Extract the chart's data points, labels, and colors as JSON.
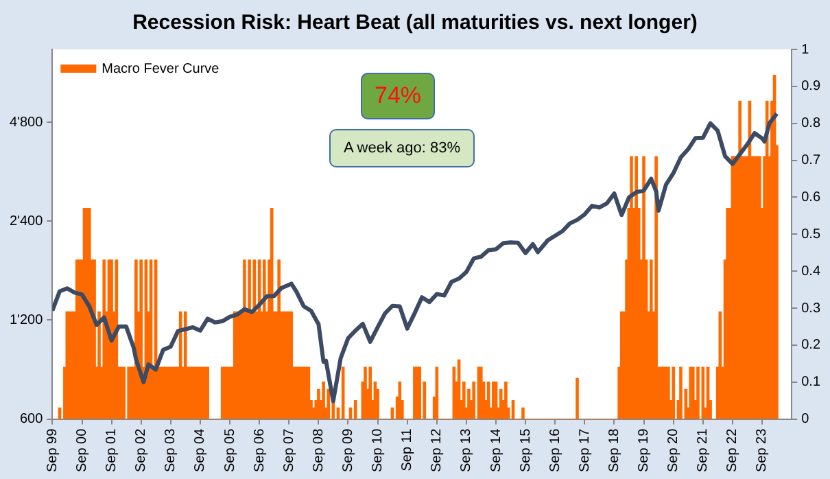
{
  "chart_data": {
    "type": "bar",
    "title": "Recession Risk: Heart Beat (all maturities vs. next longer)",
    "annotations": [
      "74%",
      "A week ago: 83%"
    ],
    "x": [
      "1999-09",
      "1999-10",
      "1999-11",
      "1999-12",
      "2000-01",
      "2000-02",
      "2000-03",
      "2000-04",
      "2000-05",
      "2000-06",
      "2000-07",
      "2000-08",
      "2000-09",
      "2000-10",
      "2000-11",
      "2000-12",
      "2001-01",
      "2001-02",
      "2001-03",
      "2001-04",
      "2001-05",
      "2001-06",
      "2001-07",
      "2001-08",
      "2001-09",
      "2001-10",
      "2001-11",
      "2001-12",
      "2002-01",
      "2002-02",
      "2002-03",
      "2002-04",
      "2002-05",
      "2002-06",
      "2002-07",
      "2002-08",
      "2002-09",
      "2002-10",
      "2002-11",
      "2002-12",
      "2003-01",
      "2003-02",
      "2003-03",
      "2003-04",
      "2003-05",
      "2003-06",
      "2003-07",
      "2003-08",
      "2003-09",
      "2003-10",
      "2003-11",
      "2003-12",
      "2004-01",
      "2004-02",
      "2004-03",
      "2004-04",
      "2004-05",
      "2004-06",
      "2004-07",
      "2004-08",
      "2004-09",
      "2004-10",
      "2004-11",
      "2004-12",
      "2005-01",
      "2005-02",
      "2005-03",
      "2005-04",
      "2005-05",
      "2005-06",
      "2005-07",
      "2005-08",
      "2005-09",
      "2005-10",
      "2005-11",
      "2005-12",
      "2006-01",
      "2006-02",
      "2006-03",
      "2006-04",
      "2006-05",
      "2006-06",
      "2006-07",
      "2006-08",
      "2006-09",
      "2006-10",
      "2006-11",
      "2006-12",
      "2007-01",
      "2007-02",
      "2007-03",
      "2007-04",
      "2007-05",
      "2007-06",
      "2007-07",
      "2007-08",
      "2007-09",
      "2007-10",
      "2007-11",
      "2007-12",
      "2008-01",
      "2008-02",
      "2008-03",
      "2008-04",
      "2008-05",
      "2008-06",
      "2008-07",
      "2008-08",
      "2008-09",
      "2008-10",
      "2008-11",
      "2008-12",
      "2009-01",
      "2009-02",
      "2009-03",
      "2009-04",
      "2009-05",
      "2009-06",
      "2009-07",
      "2009-08",
      "2009-09",
      "2009-10",
      "2009-11",
      "2009-12",
      "2010-01",
      "2010-02",
      "2010-03",
      "2010-04",
      "2010-05",
      "2010-06",
      "2010-07",
      "2010-08",
      "2010-09",
      "2010-10",
      "2010-11",
      "2010-12",
      "2011-01",
      "2011-02",
      "2011-03",
      "2011-04",
      "2011-05",
      "2011-06",
      "2011-07",
      "2011-08",
      "2011-09",
      "2011-10",
      "2011-11",
      "2011-12",
      "2012-01",
      "2012-02",
      "2012-03",
      "2012-04",
      "2012-05",
      "2012-06",
      "2012-07",
      "2012-08",
      "2012-09",
      "2012-10",
      "2012-11",
      "2012-12",
      "2013-01",
      "2013-02",
      "2013-03",
      "2013-04",
      "2013-05",
      "2013-06",
      "2013-07",
      "2013-08",
      "2013-09",
      "2013-10",
      "2013-11",
      "2013-12",
      "2014-01",
      "2014-02",
      "2014-03",
      "2014-04",
      "2014-05",
      "2014-06",
      "2014-07",
      "2014-08",
      "2014-09",
      "2014-10",
      "2014-11",
      "2014-12",
      "2015-01",
      "2015-02",
      "2015-03",
      "2015-04",
      "2015-05",
      "2015-06",
      "2015-07",
      "2015-08",
      "2015-09",
      "2015-10",
      "2015-11",
      "2015-12",
      "2016-01",
      "2016-02",
      "2016-03",
      "2016-04",
      "2016-05",
      "2016-06",
      "2016-07",
      "2016-08",
      "2016-09",
      "2016-10",
      "2016-11",
      "2016-12",
      "2017-01",
      "2017-02",
      "2017-03",
      "2017-04",
      "2017-05",
      "2017-06",
      "2017-07",
      "2017-08",
      "2017-09",
      "2017-10",
      "2017-11",
      "2017-12",
      "2018-01",
      "2018-02",
      "2018-03",
      "2018-04",
      "2018-05",
      "2018-06",
      "2018-07",
      "2018-08",
      "2018-09",
      "2018-10",
      "2018-11",
      "2018-12",
      "2019-01",
      "2019-02",
      "2019-03",
      "2019-04",
      "2019-05",
      "2019-06",
      "2019-07",
      "2019-08",
      "2019-09",
      "2019-10",
      "2019-11",
      "2019-12",
      "2020-01",
      "2020-02",
      "2020-03",
      "2020-04",
      "2020-05",
      "2020-06",
      "2020-07",
      "2020-08",
      "2020-09",
      "2020-10",
      "2020-11",
      "2020-12",
      "2021-01",
      "2021-02",
      "2021-03",
      "2021-04",
      "2021-05",
      "2021-06",
      "2021-07",
      "2021-08",
      "2021-09",
      "2021-10",
      "2021-11",
      "2021-12",
      "2022-01",
      "2022-02",
      "2022-03",
      "2022-04",
      "2022-05",
      "2022-06",
      "2022-07",
      "2022-08",
      "2022-09",
      "2022-10",
      "2022-11",
      "2022-12",
      "2023-01",
      "2023-02",
      "2023-03",
      "2023-04",
      "2023-05",
      "2023-06",
      "2023-07",
      "2023-08",
      "2023-09",
      "2023-10",
      "2023-11",
      "2023-12",
      "2024-01",
      "2024-02",
      "2024-03"
    ],
    "series": [
      {
        "name": "Macro Fever Curve",
        "axis": "y2",
        "color": "#ff6a00",
        "values": [
          0,
          0,
          0,
          0.03,
          0,
          0.14,
          0.29,
          0.29,
          0.29,
          0.29,
          0.43,
          0.43,
          0.43,
          0.57,
          0.57,
          0.57,
          0.43,
          0.43,
          0.14,
          0.29,
          0.14,
          0.43,
          0.29,
          0.43,
          0.43,
          0.29,
          0.43,
          0.14,
          0.14,
          0.14,
          0,
          0.14,
          0.14,
          0.14,
          0.43,
          0.29,
          0.43,
          0.14,
          0.43,
          0.29,
          0.43,
          0.14,
          0.43,
          0.14,
          0.14,
          0.14,
          0.14,
          0.14,
          0.14,
          0.14,
          0.14,
          0.14,
          0.29,
          0.14,
          0.29,
          0.14,
          0.14,
          0.14,
          0.14,
          0.14,
          0.14,
          0.14,
          0.14,
          0.14,
          0,
          0,
          0,
          0,
          0,
          0.14,
          0.14,
          0.14,
          0.14,
          0.14,
          0.29,
          0.29,
          0.29,
          0.29,
          0.43,
          0.29,
          0.43,
          0.29,
          0.43,
          0.29,
          0.43,
          0.29,
          0.43,
          0.29,
          0.43,
          0.57,
          0.29,
          0.29,
          0.43,
          0.29,
          0.29,
          0.29,
          0.29,
          0.29,
          0.14,
          0.14,
          0.14,
          0.14,
          0.14,
          0.14,
          0.14,
          0.05,
          0.03,
          0.05,
          0.08,
          0.05,
          0.1,
          0.03,
          0.08,
          0,
          0.05,
          0,
          0.03,
          0,
          0.14,
          0,
          0,
          0.03,
          0,
          0.05,
          0,
          0,
          0.1,
          0.14,
          0.08,
          0.14,
          0.05,
          0.1,
          0.08,
          0,
          0,
          0,
          0,
          0,
          0.03,
          0,
          0.06,
          0.1,
          0.05,
          0,
          0,
          0,
          0,
          0.14,
          0.14,
          0.14,
          0,
          0.1,
          0,
          0,
          0,
          0.06,
          0.14,
          0,
          0,
          0,
          0,
          0,
          0,
          0.14,
          0.1,
          0.16,
          0.05,
          0.1,
          0.03,
          0.08,
          0.05,
          0.1,
          0,
          0.14,
          0.14,
          0.1,
          0.05,
          0.1,
          0.03,
          0.1,
          0.1,
          0.03,
          0.08,
          0.05,
          0.1,
          0.03,
          0,
          0.05,
          0,
          0,
          0,
          0.03,
          0,
          0,
          0,
          0,
          0,
          0,
          0,
          0,
          0,
          0,
          0,
          0,
          0,
          0,
          0,
          0,
          0,
          0,
          0,
          0,
          0,
          0.11,
          0,
          0,
          0,
          0,
          0,
          0,
          0,
          0,
          0,
          0,
          0,
          0,
          0,
          0,
          0,
          0,
          0.14,
          0.29,
          0.29,
          0.43,
          0.57,
          0.71,
          0.57,
          0.71,
          0.57,
          0.43,
          0.71,
          0.43,
          0.29,
          0.43,
          0.29,
          0.71,
          0.14,
          0.14,
          0.14,
          0.14,
          0.14,
          0.05,
          0.14,
          0,
          0.05,
          0.14,
          0,
          0.08,
          0.03,
          0.14,
          0.14,
          0.05,
          0.14,
          0,
          0.14,
          0.03,
          0.14,
          0.05,
          0,
          0,
          0.14,
          0.29,
          0.14,
          0.43,
          0.57,
          0.57,
          0.71,
          0.71,
          0.71,
          0.86,
          0.71,
          0.71,
          0.71,
          0.86,
          0.71,
          0.71,
          0.71,
          0.71,
          0.57,
          0.71,
          0.86,
          0.71,
          0.86,
          0.93,
          0.74
        ]
      },
      {
        "type": "line",
        "axis": "y",
        "color": "#3c4b63",
        "x": [
          "1999-09",
          "1999-12",
          "2000-03",
          "2000-06",
          "2000-09",
          "2000-12",
          "2001-03",
          "2001-06",
          "2001-09",
          "2001-12",
          "2002-03",
          "2002-06",
          "2002-07",
          "2002-10",
          "2002-12",
          "2003-03",
          "2003-06",
          "2003-09",
          "2003-12",
          "2004-03",
          "2004-06",
          "2004-09",
          "2004-12",
          "2005-03",
          "2005-06",
          "2005-09",
          "2005-12",
          "2006-03",
          "2006-06",
          "2006-09",
          "2006-12",
          "2007-03",
          "2007-06",
          "2007-10",
          "2007-12",
          "2008-03",
          "2008-06",
          "2008-09",
          "2008-11",
          "2008-12",
          "2009-03",
          "2009-06",
          "2009-09",
          "2009-12",
          "2010-03",
          "2010-06",
          "2010-09",
          "2010-12",
          "2011-03",
          "2011-06",
          "2011-09",
          "2011-12",
          "2012-03",
          "2012-06",
          "2012-09",
          "2012-12",
          "2013-03",
          "2013-06",
          "2013-09",
          "2013-12",
          "2014-03",
          "2014-06",
          "2014-09",
          "2014-12",
          "2015-03",
          "2015-06",
          "2015-09",
          "2015-12",
          "2016-02",
          "2016-06",
          "2016-09",
          "2016-12",
          "2017-03",
          "2017-06",
          "2017-09",
          "2017-12",
          "2018-03",
          "2018-06",
          "2018-09",
          "2018-12",
          "2019-03",
          "2019-06",
          "2019-09",
          "2019-12",
          "2020-02",
          "2020-03",
          "2020-06",
          "2020-09",
          "2020-12",
          "2021-03",
          "2021-06",
          "2021-09",
          "2021-12",
          "2022-03",
          "2022-06",
          "2022-09",
          "2022-12",
          "2023-03",
          "2023-06",
          "2023-09",
          "2023-10",
          "2023-12",
          "2024-03"
        ],
        "values": [
          1282,
          1469,
          1499,
          1455,
          1436,
          1320,
          1160,
          1224,
          1040,
          1148,
          1147,
          990,
          911,
          777,
          880,
          848,
          975,
          996,
          1112,
          1126,
          1141,
          1115,
          1212,
          1181,
          1191,
          1228,
          1248,
          1295,
          1270,
          1336,
          1418,
          1421,
          1503,
          1549,
          1468,
          1323,
          1280,
          1166,
          896,
          903,
          680,
          919,
          1057,
          1115,
          1169,
          1031,
          1141,
          1258,
          1326,
          1321,
          1131,
          1258,
          1408,
          1362,
          1441,
          1426,
          1569,
          1606,
          1682,
          1848,
          1872,
          1960,
          1972,
          2059,
          2068,
          2063,
          1920,
          2044,
          1932,
          2099,
          2168,
          2239,
          2363,
          2423,
          2519,
          2674,
          2641,
          2718,
          2914,
          2507,
          2834,
          2942,
          2977,
          3231,
          2954,
          2585,
          3100,
          3363,
          3756,
          3973,
          4298,
          4308,
          4766,
          4530,
          3785,
          3586,
          3840,
          4109,
          4450,
          4288,
          4194,
          4770,
          5100
        ]
      }
    ],
    "log": "y",
    "legend": "top left",
    "marker": "none",
    "xlim": [
      "1999-09",
      "2024-09"
    ],
    "xticks": [
      {
        "value": "1999-09",
        "label": "Sep 99"
      },
      {
        "value": "2000-09",
        "label": "Sep 00"
      },
      {
        "value": "2001-09",
        "label": "Sep 01"
      },
      {
        "value": "2002-09",
        "label": "Sep 02"
      },
      {
        "value": "2003-09",
        "label": "Sep 03"
      },
      {
        "value": "2004-09",
        "label": "Sep 04"
      },
      {
        "value": "2005-09",
        "label": "Sep 05"
      },
      {
        "value": "2006-09",
        "label": "Sep 06"
      },
      {
        "value": "2007-09",
        "label": "Sep 07"
      },
      {
        "value": "2008-09",
        "label": "Sep 08"
      },
      {
        "value": "2009-09",
        "label": "Sep 09"
      },
      {
        "value": "2010-09",
        "label": "Sep 10"
      },
      {
        "value": "2011-09",
        "label": "Sep 11"
      },
      {
        "value": "2012-09",
        "label": "Sep 12"
      },
      {
        "value": "2013-09",
        "label": "Sep 13"
      },
      {
        "value": "2014-09",
        "label": "Sep 14"
      },
      {
        "value": "2015-09",
        "label": "Sep 15"
      },
      {
        "value": "2016-09",
        "label": "Sep 16"
      },
      {
        "value": "2017-09",
        "label": "Sep 17"
      },
      {
        "value": "2018-09",
        "label": "Sep 18"
      },
      {
        "value": "2019-09",
        "label": "Sep 19"
      },
      {
        "value": "2020-09",
        "label": "Sep 20"
      },
      {
        "value": "2021-09",
        "label": "Sep 21"
      },
      {
        "value": "2022-09",
        "label": "Sep 22"
      },
      {
        "value": "2023-09",
        "label": "Sep 23"
      }
    ],
    "ylim": [
      600,
      8000
    ],
    "yticks": [
      600,
      {
        "value": 1200,
        "label": "1'200"
      },
      {
        "value": 2400,
        "label": "2'400"
      },
      {
        "value": 4800,
        "label": "4'800"
      }
    ],
    "y2lim": [
      0,
      1
    ],
    "y2ticks": [
      0,
      0.1,
      0.2,
      0.3,
      0.4,
      0.5,
      0.6,
      0.7,
      0.8,
      0.9,
      1
    ]
  }
}
